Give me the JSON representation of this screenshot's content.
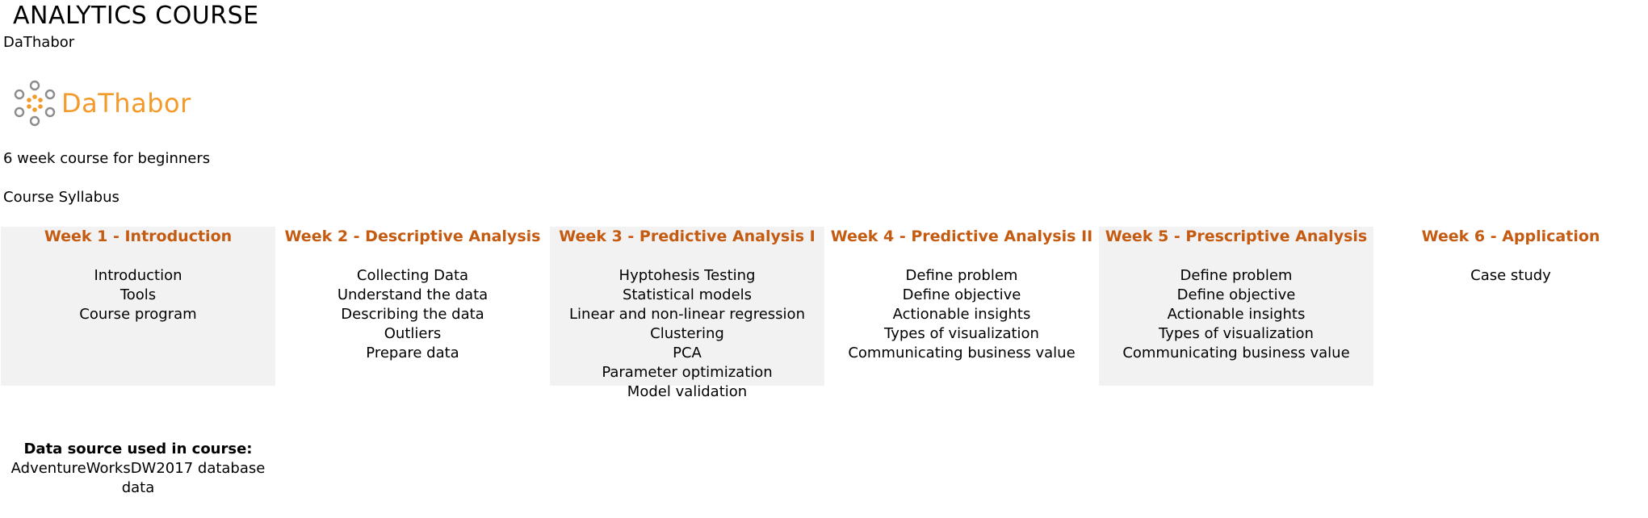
{
  "header": {
    "title": "ANALYTICS COURSE",
    "subtitle": "DaThabor"
  },
  "logo": {
    "text": "DaThabor",
    "icon": "dathabor-logo-icon",
    "color": "#f39a2a"
  },
  "course": {
    "description": "6 week course for beginners",
    "syllabus_label": "Course Syllabus"
  },
  "weeks": [
    {
      "title": "Week 1 - Introduction",
      "topics": [
        "Introduction",
        "Tools",
        "Course program"
      ]
    },
    {
      "title": "Week 2 - Descriptive Analysis",
      "topics": [
        "Collecting Data",
        "Understand the data",
        "Describing the data",
        "Outliers",
        "Prepare data"
      ]
    },
    {
      "title": "Week 3 - Predictive Analysis I",
      "topics": [
        "Hyptohesis Testing",
        "Statistical models",
        "Linear and non-linear regression",
        "Clustering",
        "PCA",
        "Parameter optimization",
        "Model validation"
      ]
    },
    {
      "title": "Week 4 - Predictive Analysis II",
      "topics": [
        "Define problem",
        "Define objective",
        "Actionable insights",
        "Types of visualization",
        "Communicating business value"
      ]
    },
    {
      "title": "Week 5 - Prescriptive Analysis",
      "topics": [
        "Define problem",
        "Define objective",
        "Actionable insights",
        "Types of visualization",
        "Communicating business value"
      ]
    },
    {
      "title": "Week 6 - Application",
      "topics": [
        "Case study"
      ]
    }
  ],
  "data_source": {
    "label": "Data source used in course:",
    "line1": "AdventureWorksDW2017 database",
    "line2": "data"
  },
  "colors": {
    "week_heading": "#c55a11",
    "shaded_column": "#f2f2f2",
    "logo_orange": "#f39a2a",
    "logo_gray": "#8c8c8c"
  }
}
